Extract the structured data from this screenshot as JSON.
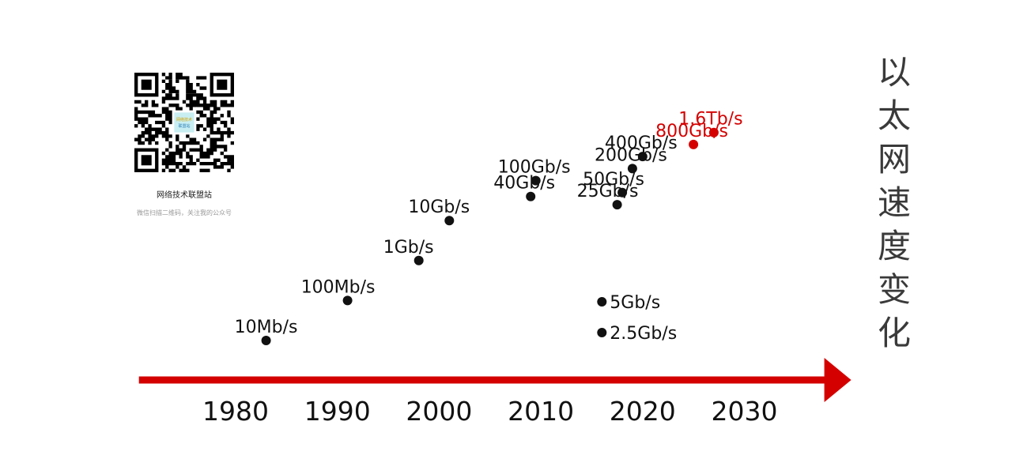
{
  "title_chars": [
    "以",
    "太",
    "网",
    "速",
    "度",
    "变",
    "化"
  ],
  "qr": {
    "caption": "网络技术联盟站",
    "subcaption": "微信扫描二维码，关注我的公众号",
    "logo_text": "网络技术联盟站"
  },
  "colors": {
    "accent": "#d40000",
    "point": "#111111",
    "label": "#111111",
    "axis": "#d40000"
  },
  "chart_data": {
    "type": "scatter",
    "title": "以太网速度变化",
    "x_ticks": [
      1980,
      1990,
      2000,
      2010,
      2020,
      2030
    ],
    "x_tick_labels": [
      "1980",
      "1990",
      "2000",
      "2010",
      "2020",
      "2030"
    ],
    "xlim": [
      1970.5,
      2040.5
    ],
    "points": [
      {
        "year": 1983,
        "speed": "10Mb/s",
        "highlight": false
      },
      {
        "year": 1991,
        "speed": "100Mb/s",
        "highlight": false
      },
      {
        "year": 1998,
        "speed": "1Gb/s",
        "highlight": false
      },
      {
        "year": 2001,
        "speed": "10Gb/s",
        "highlight": false
      },
      {
        "year": 2009,
        "speed": "40Gb/s",
        "highlight": false
      },
      {
        "year": 2009.5,
        "speed": "100Gb/s",
        "highlight": false
      },
      {
        "year": 2016,
        "speed": "2.5Gb/s",
        "highlight": false
      },
      {
        "year": 2016,
        "speed": "5Gb/s",
        "highlight": false
      },
      {
        "year": 2017.5,
        "speed": "25Gb/s",
        "highlight": false
      },
      {
        "year": 2018,
        "speed": "50Gb/s",
        "highlight": false
      },
      {
        "year": 2019,
        "speed": "200Gb/s",
        "highlight": false
      },
      {
        "year": 2020,
        "speed": "400Gb/s",
        "highlight": false
      },
      {
        "year": 2025,
        "speed": "800Gb/s",
        "highlight": true
      },
      {
        "year": 2027,
        "speed": "1.6Tb/s",
        "highlight": true
      }
    ]
  }
}
